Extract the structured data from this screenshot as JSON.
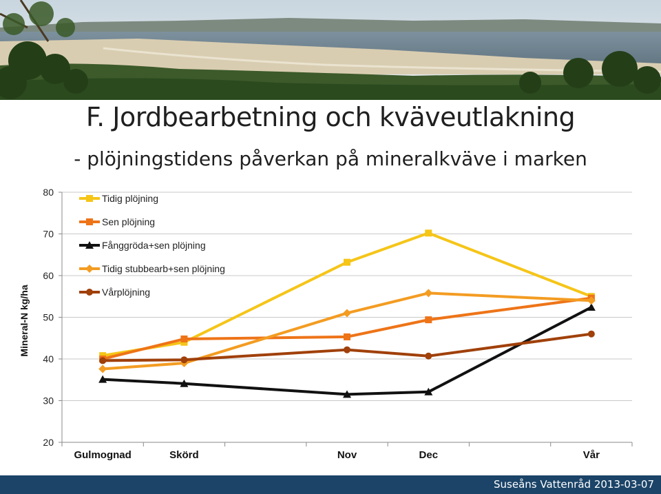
{
  "header": {
    "title": "F. Jordbearbetning och kväveutlakning",
    "subtitle": "- plöjningstidens påverkan på mineralkväve i marken"
  },
  "footer": {
    "text": "Suseåns Vattenråd 2013-03-07",
    "color": "#1b4468"
  },
  "chart_data": {
    "type": "line",
    "title": "",
    "xlabel": "",
    "ylabel": "Mineral-N kg/ha",
    "ylim": [
      20,
      80
    ],
    "yticks": [
      20,
      30,
      40,
      50,
      60,
      70,
      80
    ],
    "categories": [
      "Gulmognad",
      "Skörd",
      "",
      "Nov",
      "Dec",
      "",
      "Vår"
    ],
    "grid": true,
    "legend": "top-left",
    "series": [
      {
        "name": "Tidig plöjning",
        "color": "#f5c518",
        "marker": "square",
        "values": [
          40.8,
          44.0,
          null,
          63.2,
          70.2,
          null,
          55.0
        ]
      },
      {
        "name": "Sen plöjning",
        "color": "#ee7418",
        "marker": "square",
        "values": [
          40.0,
          44.8,
          null,
          45.3,
          49.4,
          null,
          54.6
        ]
      },
      {
        "name": "Fånggröda+sen plöjning",
        "color": "#111111",
        "marker": "triangle",
        "values": [
          35.1,
          34.1,
          null,
          31.5,
          32.1,
          null,
          52.4
        ]
      },
      {
        "name": "Tidig stubbearb+sen plöjning",
        "color": "#f39c22",
        "marker": "diamond",
        "values": [
          37.6,
          39.0,
          null,
          51.0,
          55.8,
          null,
          54.0
        ]
      },
      {
        "name": "Vårplöjning",
        "color": "#a0400a",
        "marker": "circle",
        "values": [
          39.6,
          39.8,
          null,
          42.2,
          40.7,
          null,
          46.0
        ]
      }
    ]
  }
}
